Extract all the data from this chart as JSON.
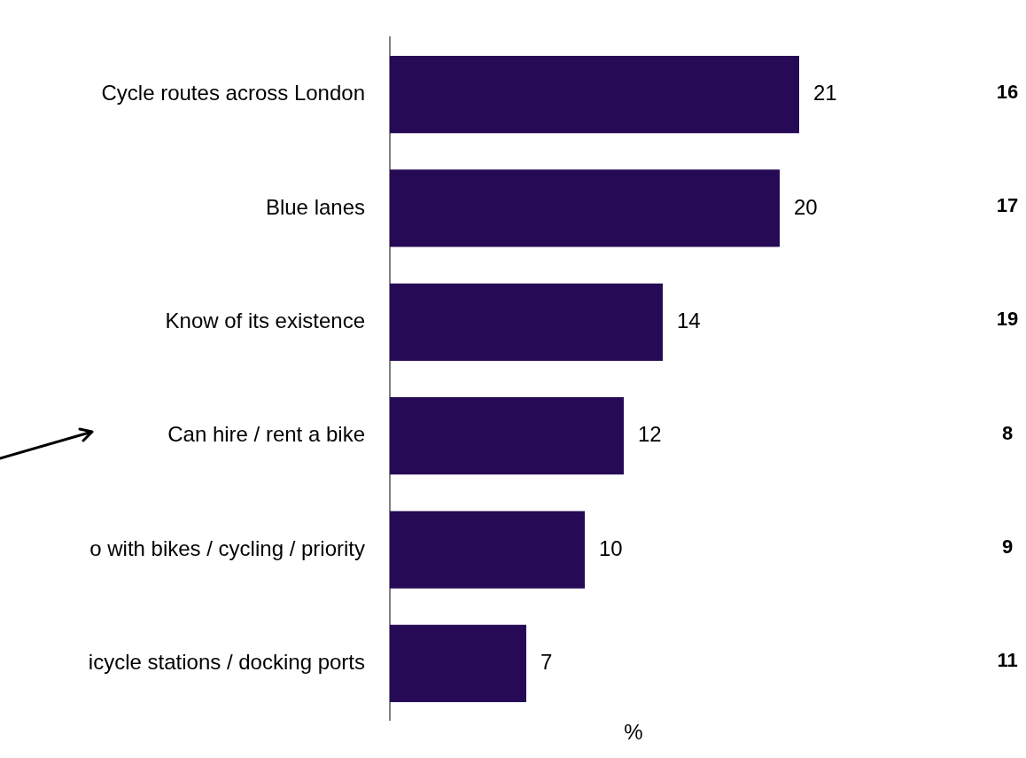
{
  "chart_data": {
    "type": "bar",
    "orientation": "horizontal",
    "categories": [
      "Cycle routes across London",
      "Blue lanes",
      "Know of its existence",
      "Can hire / rent a bike",
      "o with bikes / cycling / priority",
      "icycle stations / docking ports"
    ],
    "values": [
      21,
      20,
      14,
      12,
      10,
      7
    ],
    "color": "#260a55",
    "xlabel": "%",
    "tick_labels": "y",
    "legend": false,
    "data_labels": true,
    "annotations": [
      "16",
      "17",
      "19",
      "8",
      "9",
      "11"
    ]
  }
}
